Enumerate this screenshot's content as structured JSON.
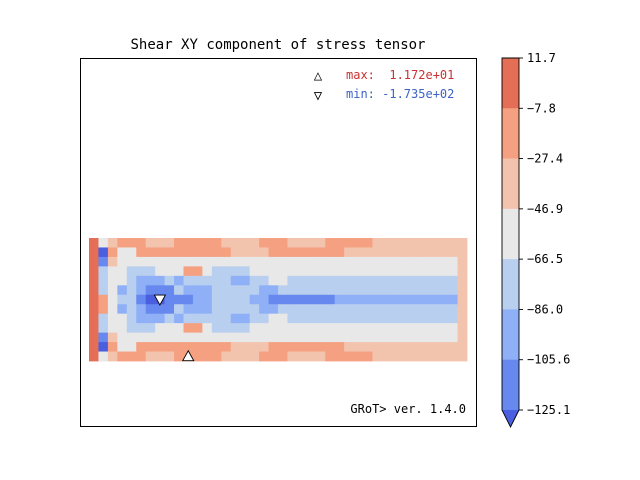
{
  "chart_data": {
    "type": "heatmap",
    "title": "Shear XY component of stress tensor",
    "annotations": {
      "max_marker": "△",
      "max_label": "max:  1.172e+01",
      "min_marker": "▽",
      "min_label": "min: -1.735e+02",
      "footer": "GRoT> ver. 1.4.0"
    },
    "colorbar": {
      "ticks": [
        "11.7",
        "−7.8",
        "−27.4",
        "−46.9",
        "−66.5",
        "−86.0",
        "−105.6",
        "−125.1"
      ],
      "levels": [
        11.7,
        -7.8,
        -27.4,
        -46.9,
        -66.5,
        -86.0,
        -105.6,
        -125.1
      ],
      "colors": [
        "#e46e56",
        "#f5a081",
        "#f2c4ae",
        "#e8e8e8",
        "#b9cfef",
        "#8fb0f6",
        "#6788ee",
        "#4a5ee0"
      ],
      "extend": "min"
    },
    "nx": 40,
    "ny": 13,
    "grid_rows": [
      "0321112221111122221112222111112222222222",
      "0713311111111112222111111112222222222222",
      "0623333333333333333333333333333333333332",
      "0433444333113444433333333333333333333332",
      "0433455545444445544334444444444444444442",
      "0435456664555444445544444444444444444442",
      "0134467766655444455666666655555555555552",
      "0135456664555444445544444444444444444442",
      "0433455545444445544334444444444444444442",
      "0433444333113444433333333333333333333332",
      "0623333333333333333333333333333333333332",
      "0713311111111112222111111112222222222222",
      "0321112221111122221112222111112222222222"
    ],
    "max_location": {
      "col": 10,
      "row": 12
    },
    "min_location": {
      "col": 7,
      "row": 6
    },
    "colors": {
      "max_text": "#c83232",
      "min_text": "#3d62c8"
    }
  }
}
